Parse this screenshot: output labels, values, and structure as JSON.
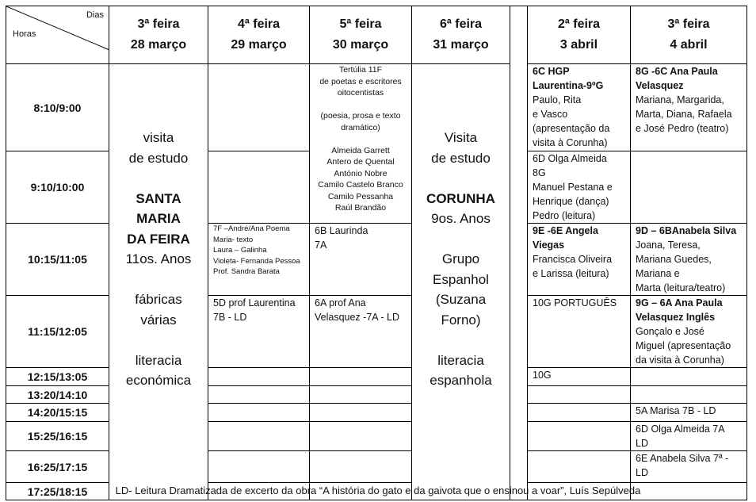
{
  "header": {
    "dias": "Dias",
    "horas": "Horas",
    "days": [
      {
        "name": "3ª feira",
        "date": "28 março"
      },
      {
        "name": "4ª feira",
        "date": "29 março"
      },
      {
        "name": "5ª feira",
        "date": "30 março"
      },
      {
        "name": "6ª feira",
        "date": "31 março"
      },
      {
        "name": "2ª feira",
        "date": "3 abril"
      },
      {
        "name": "3ª feira",
        "date": "4 abril"
      }
    ]
  },
  "times": [
    "8:10/9:00",
    "9:10/10:00",
    "10:15/11:05",
    "11:15/12:05",
    "12:15/13:05",
    "13:20/14:10",
    "14:20/15:15",
    "15:25/16:15",
    "16:25/17:15",
    "17:25/18:15"
  ],
  "tue28": "visita\nde estudo\n\nSANTA\nMARIA\nDA FEIRA\n\n11os. Anos\n\nfábricas\nvárias\n\nliteracia\neconómica",
  "tue28_bold": "SANTA\nMARIA\nDA FEIRA",
  "tue28_parts": {
    "a": "visita\nde estudo\n\n",
    "b": "SANTA\nMARIA\nDA FEIRA",
    "c": "\n11os. Anos\n\nfábricas\nvárias\n\nliteracia\neconómica"
  },
  "wed": {
    "r3": "7F –André/Ana Poema\nMaria- texto\nLaura – Galinha\nVioleta- Fernanda Pessoa\nProf. Sandra Barata",
    "r4": "5D prof Laurentina\n 7B - LD"
  },
  "thu": {
    "r12": "Tertúlia 11F\nde poetas e escritores\noitocentistas\n\n(poesia, prosa e texto\ndramático)\n\nAlmeida Garrett\nAntero de Quental\nAntónio Nobre\nCamilo Castelo Branco\nCamilo Pessanha\nRaúl Brandão",
    "r3": "6B Laurinda\n7A",
    "r4": "6A prof Ana\nVelasquez -7A - LD"
  },
  "fri": {
    "a": "Visita\nde estudo\n\n",
    "b": "CORUNHA",
    "c": "\n9os. Anos\n\nGrupo\nEspanhol\n(Suzana\nForno)\n\nliteracia\nespanhola"
  },
  "mon": {
    "r1": {
      "bold": "6C HGP\nLaurentina-9ºG",
      "text": "Paulo, Rita\ne Vasco\n(apresentação da\nvisita à Corunha)"
    },
    "r2": {
      "text": "6D Olga Almeida\n8G\nManuel Pestana e\nHenrique (dança)\nPedro (leitura)"
    },
    "r3": {
      "bold": "9E -6E Angela\nViegas",
      "text": "Francisca Oliveira\ne Larissa (leitura)"
    },
    "r4": {
      "text": "10G PORTUGUÊS"
    },
    "r5": {
      "text": "10G"
    }
  },
  "tue4": {
    "r1": {
      "bold": "8G -6C Ana Paula\nVelasquez",
      "text": "Mariana, Margarida,\nMarta, Diana, Rafaela\ne José Pedro (teatro)"
    },
    "r3": {
      "bold": "9D – 6BAnabela Silva",
      "text": "Joana, Teresa,\nMariana Guedes,\nMariana e\nMarta (leitura/teatro)"
    },
    "r4": {
      "bold": "9G – 6A Ana Paula\nVelasquez Inglês",
      "text": "Gonçalo e José\nMiguel (apresentação\nda visita à Corunha)"
    },
    "r7": "5A  Marisa  7B - LD",
    "r8": "6D  Olga Almeida 7A\nLD",
    "r9": "6E Anabela Silva 7ª -\nLD"
  },
  "footer": "LD- Leitura Dramatizada de excerto da obra “A história do gato e da gaivota que o ensinou a voar”, Luís Sepúlveda"
}
